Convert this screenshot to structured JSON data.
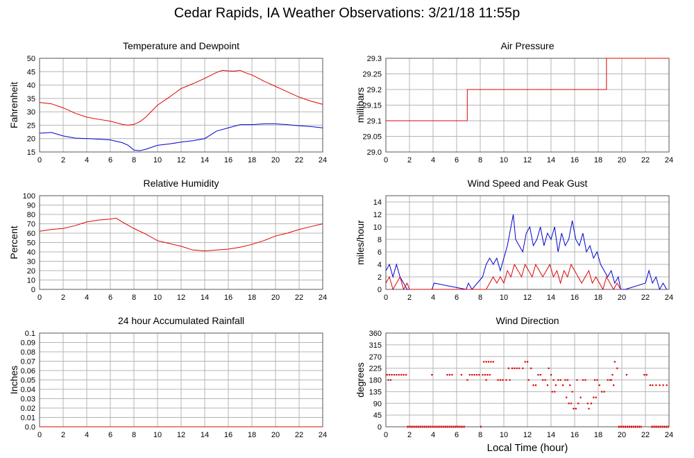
{
  "page": {
    "title": "Cedar Rapids, IA Weather Observations: 3/21/18 11:55p",
    "xlabel": "Local Time (hour)"
  },
  "colors": {
    "red": "#e00000",
    "blue": "#0000d0",
    "grid": "#b4b4b4"
  },
  "chart_data": [
    {
      "id": "temp",
      "type": "line",
      "title": "Temperature and Dewpoint",
      "xlabel": "",
      "ylabel": "Fahrenheit",
      "xlim": [
        0,
        24
      ],
      "ylim": [
        15,
        50
      ],
      "xticks": [
        0,
        2,
        4,
        6,
        8,
        10,
        12,
        14,
        16,
        18,
        20,
        22,
        24
      ],
      "yticks": [
        15,
        20,
        25,
        30,
        35,
        40,
        45,
        50
      ],
      "series": [
        {
          "color": "#e00000",
          "x": [
            0,
            1,
            2,
            3,
            4,
            5,
            6,
            7,
            7.5,
            8,
            8.5,
            9,
            10,
            11,
            12,
            13,
            14,
            15,
            15.5,
            16,
            16.5,
            17,
            17.5,
            18,
            19,
            20,
            21,
            22,
            23,
            24
          ],
          "y": [
            33.5,
            33,
            31.5,
            29.5,
            28,
            27.2,
            26.5,
            25.3,
            25,
            25.3,
            26.3,
            28,
            32.5,
            35.5,
            38.7,
            40.5,
            42.5,
            44.7,
            45.5,
            45.3,
            45.2,
            45.5,
            44.5,
            43.8,
            41.5,
            39.5,
            37.5,
            35.5,
            34,
            32.8
          ]
        },
        {
          "color": "#0000d0",
          "x": [
            0,
            1,
            2,
            3,
            4,
            5,
            6,
            7,
            7.5,
            8,
            8.5,
            9,
            10,
            11,
            12,
            13,
            14,
            15,
            16,
            17,
            18,
            19,
            20,
            21,
            22,
            23,
            24
          ],
          "y": [
            22,
            22.3,
            21,
            20.2,
            20,
            19.8,
            19.5,
            18.5,
            17.5,
            15.7,
            15.5,
            16,
            17.5,
            18,
            18.7,
            19.2,
            20,
            22.8,
            24,
            25.2,
            25.2,
            25.5,
            25.5,
            25.2,
            24.8,
            24.5,
            24
          ]
        }
      ]
    },
    {
      "id": "pressure",
      "type": "line",
      "title": "Air Pressure",
      "xlabel": "",
      "ylabel": "millibars",
      "xlim": [
        0,
        24
      ],
      "ylim": [
        29.0,
        29.3
      ],
      "xticks": [
        0,
        2,
        4,
        6,
        8,
        10,
        12,
        14,
        16,
        18,
        20,
        22,
        24
      ],
      "yticks": [
        29.0,
        29.05,
        29.1,
        29.15,
        29.2,
        29.25,
        29.3
      ],
      "ytick_labels": [
        "29.0",
        "29.05",
        "29.1",
        "29.15",
        "29.2",
        "29.25",
        "29.3"
      ],
      "series": [
        {
          "color": "#e00000",
          "step": true,
          "x": [
            0,
            6.9,
            6.9,
            18.7,
            18.7,
            24
          ],
          "y": [
            29.1,
            29.1,
            29.2,
            29.2,
            29.3,
            29.3
          ]
        }
      ]
    },
    {
      "id": "rh",
      "type": "line",
      "title": "Relative Humidity",
      "xlabel": "",
      "ylabel": "Percent",
      "xlim": [
        0,
        24
      ],
      "ylim": [
        0,
        100
      ],
      "xticks": [
        0,
        2,
        4,
        6,
        8,
        10,
        12,
        14,
        16,
        18,
        20,
        22,
        24
      ],
      "yticks": [
        0,
        10,
        20,
        30,
        40,
        50,
        60,
        70,
        80,
        90,
        100
      ],
      "series": [
        {
          "color": "#e00000",
          "x": [
            0,
            1,
            2,
            3,
            4,
            5,
            6,
            6.5,
            7,
            8,
            9,
            10,
            11,
            12,
            13,
            14,
            15,
            16,
            17,
            18,
            19,
            20,
            21,
            22,
            23,
            24
          ],
          "y": [
            62,
            64,
            65,
            68,
            72,
            74,
            75,
            76,
            72,
            65,
            59,
            52,
            49,
            46,
            42,
            41,
            42,
            43,
            45,
            48,
            52,
            57,
            60,
            64,
            67,
            70
          ]
        }
      ]
    },
    {
      "id": "wind",
      "type": "line",
      "title": "Wind Speed and Peak Gust",
      "xlabel": "",
      "ylabel": "miles/hour",
      "xlim": [
        0,
        24
      ],
      "ylim": [
        0,
        15
      ],
      "xticks": [
        0,
        2,
        4,
        6,
        8,
        10,
        12,
        14,
        16,
        18,
        20,
        22,
        24
      ],
      "yticks": [
        0,
        2,
        4,
        6,
        8,
        10,
        12,
        14
      ],
      "series": [
        {
          "name": "",
          "color": "#0000d0",
          "x": [
            0,
            0.3,
            0.6,
            0.9,
            1.2,
            1.5,
            1.8,
            2,
            3.9,
            4.1,
            6.8,
            7,
            7.3,
            8.2,
            8.5,
            8.8,
            9.1,
            9.4,
            9.7,
            10,
            10.3,
            10.6,
            10.8,
            11,
            11.3,
            11.6,
            11.9,
            12.2,
            12.5,
            12.8,
            13.1,
            13.4,
            13.7,
            14,
            14.3,
            14.6,
            14.9,
            15.2,
            15.5,
            15.8,
            16.1,
            16.4,
            16.7,
            17,
            17.3,
            17.6,
            17.9,
            18.2,
            18.5,
            18.8,
            19.1,
            19.4,
            19.7,
            19.9,
            20.3,
            22,
            22.3,
            22.6,
            22.9,
            23.2,
            23.5,
            23.8
          ],
          "y": [
            3,
            4,
            2,
            4,
            2,
            1,
            0,
            0,
            0,
            1,
            0,
            1,
            0,
            2,
            4,
            5,
            4,
            5,
            3,
            5,
            7,
            10,
            12,
            8,
            7,
            6,
            9,
            10,
            7,
            8,
            10,
            7,
            9,
            8,
            10,
            6,
            9,
            7,
            8,
            11,
            8,
            7,
            9,
            6,
            7,
            5,
            6,
            4,
            3,
            2,
            3,
            1,
            2,
            0,
            0,
            1,
            3,
            1,
            2,
            0,
            1,
            0
          ]
        },
        {
          "name": "",
          "color": "#e00000",
          "x": [
            0,
            0.3,
            0.6,
            0.9,
            1.2,
            1.5,
            1.8,
            2,
            8.5,
            8.8,
            9.1,
            9.4,
            9.7,
            10,
            10.3,
            10.6,
            10.9,
            11.2,
            11.5,
            11.8,
            12.1,
            12.4,
            12.7,
            13,
            13.3,
            13.6,
            13.9,
            14.2,
            14.5,
            14.8,
            15.1,
            15.4,
            15.7,
            16,
            16.3,
            16.6,
            16.9,
            17.2,
            17.5,
            17.8,
            18.1,
            18.4,
            18.7,
            19,
            19.3,
            19.6,
            19.9
          ],
          "y": [
            1,
            2,
            0,
            1,
            2,
            0,
            1,
            0,
            0,
            1,
            2,
            1,
            2,
            1,
            3,
            2,
            4,
            3,
            2,
            4,
            3,
            2,
            4,
            3,
            2,
            3,
            4,
            2,
            3,
            1,
            3,
            2,
            4,
            3,
            2,
            1,
            2,
            3,
            1,
            2,
            1,
            0,
            2,
            1,
            0,
            1,
            0
          ]
        }
      ]
    },
    {
      "id": "rain",
      "type": "line",
      "title": "24 hour Accumulated Rainfall",
      "xlabel": "",
      "ylabel": "Inches",
      "xlim": [
        0,
        24
      ],
      "ylim": [
        0,
        0.1
      ],
      "xticks": [
        0,
        2,
        4,
        6,
        8,
        10,
        12,
        14,
        16,
        18,
        20,
        22,
        24
      ],
      "yticks": [
        0,
        0.01,
        0.02,
        0.03,
        0.04,
        0.05,
        0.06,
        0.07,
        0.08,
        0.09,
        0.1
      ],
      "ytick_labels": [
        "0.0",
        "0.01",
        "0.02",
        "0.03",
        "0.04",
        "0.05",
        "0.06",
        "0.07",
        "0.08",
        "0.09",
        "0.1"
      ],
      "series": [
        {
          "color": "#e00000",
          "x": [
            0,
            24
          ],
          "y": [
            0,
            0
          ]
        }
      ]
    },
    {
      "id": "dir",
      "type": "scatter",
      "title": "Wind Direction",
      "xlabel": "",
      "ylabel": "degrees",
      "xlim": [
        0,
        24
      ],
      "ylim": [
        0,
        360
      ],
      "xticks": [
        0,
        2,
        4,
        6,
        8,
        10,
        12,
        14,
        16,
        18,
        20,
        22,
        24
      ],
      "yticks": [
        0,
        45,
        90,
        135,
        180,
        225,
        270,
        315,
        360
      ],
      "series": [
        {
          "color": "#e00000",
          "x": [
            0.1,
            0.3,
            0.5,
            0.7,
            0.9,
            1.1,
            1.3,
            1.5,
            1.7,
            0.2,
            0.4,
            3.9,
            5.2,
            5.4,
            5.6,
            6.4,
            6.9,
            7.1,
            7.3,
            7.5,
            7.7,
            7.9,
            8.2,
            8.4,
            8.6,
            8.8,
            8.3,
            8.5,
            8.7,
            8.9,
            9.1,
            8.5,
            9.5,
            9.7,
            9.9,
            10.2,
            10.5,
            10.4,
            10.7,
            10.9,
            11.1,
            11.3,
            11.6,
            11.8,
            12,
            12.3,
            12.1,
            12.5,
            12.7,
            12.9,
            13.1,
            13.3,
            13.5,
            13.7,
            13.8,
            14,
            14.2,
            14.4,
            14.6,
            14.1,
            14.3,
            14.8,
            15,
            15.2,
            15.4,
            15.3,
            15.5,
            15.7,
            15.9,
            16.1,
            16.3,
            16.5,
            16.7,
            15.6,
            15.8,
            16.2,
            16.9,
            17.1,
            17.4,
            17.2,
            17.7,
            17.9,
            18.1,
            17.6,
            17.8,
            18.3,
            18.5,
            18.8,
            19,
            19.2,
            19.4,
            19.6,
            19.3,
            19.1,
            20.4,
            21.9,
            22.1,
            22.4,
            22.6,
            22.9,
            23.2,
            23.5,
            23.8
          ],
          "y": [
            200,
            200,
            200,
            200,
            200,
            200,
            200,
            200,
            200,
            180,
            180,
            200,
            200,
            200,
            200,
            200,
            180,
            200,
            200,
            200,
            200,
            200,
            200,
            200,
            200,
            200,
            250,
            250,
            250,
            250,
            250,
            180,
            180,
            180,
            180,
            180,
            180,
            225,
            225,
            225,
            225,
            225,
            225,
            250,
            250,
            225,
            180,
            160,
            160,
            200,
            200,
            180,
            180,
            160,
            225,
            200,
            180,
            160,
            180,
            135,
            135,
            180,
            160,
            180,
            180,
            113,
            90,
            90,
            70,
            70,
            90,
            113,
            180,
            160,
            135,
            180,
            180,
            90,
            90,
            70,
            180,
            180,
            160,
            113,
            113,
            135,
            135,
            180,
            180,
            200,
            250,
            225,
            160,
            180,
            200,
            200,
            200,
            160,
            160,
            160,
            160,
            160,
            160
          ]
        },
        {
          "color": "#e00000",
          "zero_band": true,
          "x_ranges": [
            [
              1.8,
              6.7
            ],
            [
              8.0,
              8.1
            ],
            [
              19.7,
              21.7
            ],
            [
              22.5,
              24
            ]
          ],
          "y": 0
        }
      ]
    }
  ]
}
